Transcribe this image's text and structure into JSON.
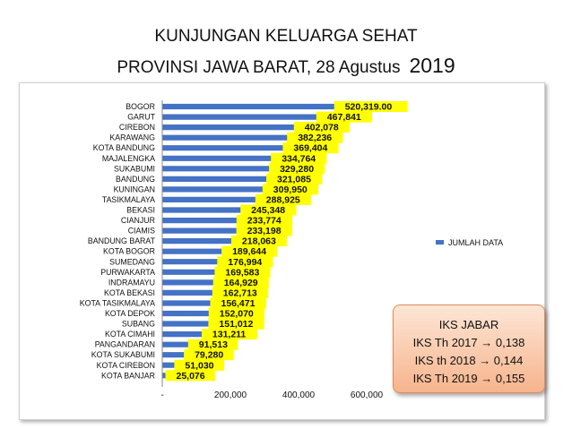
{
  "title_line1": "KUNJUNGAN KELUARGA SEHAT",
  "title_line2": "PROVINSI JAWA BARAT, 28 Agustus",
  "title_year": "2019",
  "chart_data": {
    "type": "bar",
    "orientation": "horizontal",
    "categories": [
      "BOGOR",
      "GARUT",
      "CIREBON",
      "KARAWANG",
      "KOTA BANDUNG",
      "MAJALENGKA",
      "SUKABUMI",
      "BANDUNG",
      "KUNINGAN",
      "TASIKMALAYA",
      "BEKASI",
      "CIANJUR",
      "CIAMIS",
      "BANDUNG BARAT",
      "KOTA BOGOR",
      "SUMEDANG",
      "PURWAKARTA",
      "INDRAMAYU",
      "KOTA BEKASI",
      "KOTA TASIKMALAYA",
      "KOTA DEPOK",
      "SUBANG",
      "KOTA CIMAHI",
      "PANGANDARAN",
      "KOTA SUKABUMI",
      "KOTA CIREBON",
      "KOTA BANJAR"
    ],
    "values": [
      520319,
      467841,
      402078,
      382236,
      369404,
      334764,
      329280,
      321085,
      309950,
      288925,
      245348,
      233774,
      233198,
      218063,
      189644,
      176994,
      169583,
      164929,
      162713,
      156471,
      152070,
      151012,
      131211,
      91513,
      79280,
      51030,
      25076
    ],
    "value_labels": [
      "520,319.00",
      "467,841",
      "402,078",
      "382,236",
      "369,404",
      "334,764",
      "329,280",
      "321,085",
      "309,950",
      "288,925",
      "245,348",
      "233,774",
      "233,198",
      "218,063",
      "189,644",
      "176,994",
      "169,583",
      "164,929",
      "162,713",
      "156,471",
      "152,070",
      "151,012",
      "131,211",
      "91,513",
      "79,280",
      "51,030",
      "25,076"
    ],
    "series": [
      {
        "name": "JUMLAH DATA"
      }
    ],
    "xlim": [
      0,
      600000
    ],
    "x_ticks": [
      "-",
      "200,000",
      "400,000",
      "600,000"
    ],
    "legend": "right",
    "bar_color": "#4472C4",
    "label_highlight_color": "#FFFF00"
  },
  "note": {
    "line1": "IKS JABAR",
    "line2": "IKS Th 2017 → 0,138",
    "line3": "IKS th 2018 → 0,144",
    "line4": "IKS Th 2019 → 0,155"
  }
}
